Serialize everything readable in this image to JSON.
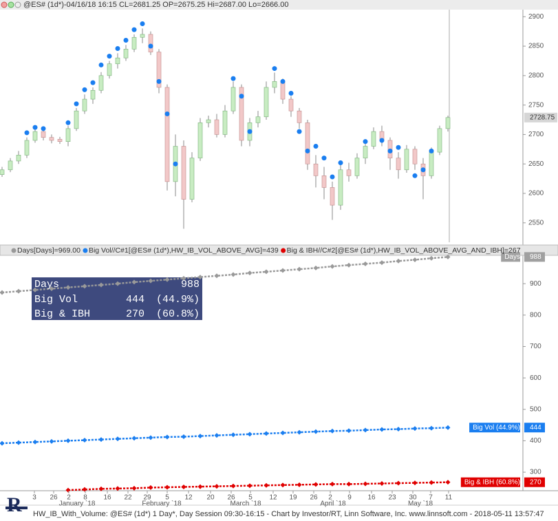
{
  "header": {
    "title": "@ES# (1d*)-04/16/18 16:15 CL=2681.25 OP=2675.25 Hi=2687.00 Lo=2666.00"
  },
  "chart_data": [
    {
      "type": "candlestick",
      "open": [
        2632,
        2640,
        2655,
        2665,
        2690,
        2705,
        2695,
        2692,
        2688,
        2710,
        2740,
        2760,
        2775,
        2800,
        2820,
        2830,
        2845,
        2865,
        2870,
        2840,
        2780,
        2620,
        2680,
        2590,
        2660,
        2720,
        2725,
        2700,
        2740,
        2780,
        2690,
        2720,
        2730,
        2780,
        2790,
        2760,
        2740,
        2720,
        2650,
        2630,
        2610,
        2580,
        2640,
        2630,
        2660,
        2680,
        2705,
        2690,
        2660,
        2640,
        2675,
        2650,
        2630,
        2670,
        2710
      ],
      "high": [
        2645,
        2660,
        2672,
        2695,
        2712,
        2710,
        2700,
        2696,
        2715,
        2745,
        2768,
        2780,
        2806,
        2825,
        2838,
        2852,
        2870,
        2880,
        2875,
        2845,
        2785,
        2700,
        2690,
        2670,
        2728,
        2732,
        2735,
        2750,
        2790,
        2785,
        2728,
        2740,
        2790,
        2805,
        2795,
        2765,
        2745,
        2725,
        2665,
        2645,
        2620,
        2648,
        2652,
        2668,
        2690,
        2712,
        2715,
        2695,
        2670,
        2682,
        2680,
        2660,
        2678,
        2715,
        2732
      ],
      "low": [
        2628,
        2636,
        2650,
        2660,
        2686,
        2690,
        2685,
        2684,
        2680,
        2706,
        2735,
        2752,
        2770,
        2795,
        2812,
        2825,
        2840,
        2855,
        2835,
        2770,
        2605,
        2595,
        2540,
        2585,
        2655,
        2712,
        2695,
        2695,
        2735,
        2680,
        2680,
        2712,
        2725,
        2770,
        2752,
        2730,
        2710,
        2640,
        2610,
        2590,
        2555,
        2572,
        2620,
        2625,
        2650,
        2675,
        2680,
        2640,
        2625,
        2635,
        2640,
        2590,
        2625,
        2665,
        2705
      ],
      "close": [
        2640,
        2655,
        2665,
        2690,
        2705,
        2695,
        2690,
        2688,
        2710,
        2740,
        2760,
        2775,
        2800,
        2820,
        2830,
        2845,
        2865,
        2870,
        2840,
        2780,
        2620,
        2680,
        2590,
        2660,
        2720,
        2725,
        2700,
        2740,
        2780,
        2690,
        2720,
        2730,
        2780,
        2790,
        2760,
        2740,
        2720,
        2650,
        2630,
        2610,
        2580,
        2640,
        2630,
        2660,
        2680,
        2705,
        2690,
        2660,
        2640,
        2675,
        2650,
        2630,
        2670,
        2710,
        2728.75
      ],
      "signals": [
        null,
        null,
        null,
        2703,
        2712,
        2710,
        null,
        null,
        2720,
        2752,
        2776,
        2788,
        2818,
        2833,
        2846,
        2860,
        2878,
        2888,
        2850,
        2790,
        2735,
        2650,
        null,
        null,
        null,
        null,
        null,
        null,
        2795,
        2765,
        2705,
        null,
        null,
        2812,
        2790,
        2770,
        2705,
        2672,
        2680,
        2660,
        2628,
        2652,
        null,
        null,
        2688,
        null,
        2690,
        2672,
        2678,
        null,
        2630,
        2640,
        2672,
        null,
        null
      ],
      "signal_color": "#1a7ef0",
      "up_color": "#c8ecc2",
      "down_color": "#f2c8c8",
      "ylim": [
        2517,
        2912
      ],
      "yticks": [
        2550,
        2600,
        2650,
        2700,
        2750,
        2800,
        2850,
        2900
      ]
    },
    {
      "type": "line",
      "series": [
        {
          "name": "Days[Days]=969.00",
          "tag": "Days",
          "last_label": 988,
          "color": "#999999",
          "values": [
            872,
            876,
            880,
            884,
            888,
            892,
            896,
            900,
            905,
            909,
            913,
            917,
            921,
            925,
            929,
            934,
            938,
            942,
            946,
            950,
            955,
            959,
            963,
            967,
            972,
            976,
            981,
            985
          ]
        },
        {
          "name": "Big Vol//C#1[@ES# (1d*),HW_IB_VOL_ABOVE_AVG]=439",
          "tag": "Big Vol (44.9%)",
          "last_label": 444,
          "color": "#1a7ef0",
          "values": [
            392,
            394,
            396,
            398,
            400,
            402,
            404,
            406,
            408,
            410,
            412,
            413,
            415,
            417,
            419,
            421,
            423,
            425,
            427,
            429,
            431,
            432,
            434,
            436,
            437,
            439,
            440,
            442
          ]
        },
        {
          "name": "Big & IBH//C#2[@ES# (1d*),HW_IB_VOL_ABOVE_AVG_AND_IBH]=267",
          "tag": "Big & IBH (60.8%)",
          "last_label": 270,
          "color": "#e00000",
          "values": [
            null,
            null,
            null,
            null,
            243,
            245,
            247,
            248,
            249,
            251,
            252,
            253,
            254,
            255,
            256,
            257,
            258,
            259,
            260,
            261,
            262,
            262,
            263,
            264,
            265,
            266,
            267,
            268
          ]
        }
      ],
      "ylim": [
        241,
        988
      ],
      "yticks": [
        300,
        400,
        500,
        600,
        700,
        800,
        900
      ]
    }
  ],
  "info_box": [
    {
      "label": "Days",
      "value": 988
    },
    {
      "label": "Big Vol",
      "value": 444,
      "pct": "(44.9%)"
    },
    {
      "label": "Big & IBH",
      "value": 270,
      "pct": "(60.8%)"
    }
  ],
  "date_axis": {
    "days": [
      "3",
      "26",
      "2",
      "8",
      "16",
      "22",
      "29",
      "5",
      "12",
      "20",
      "26",
      "5",
      "12",
      "19",
      "26",
      "2",
      "9",
      "16",
      "23",
      "30",
      "7",
      "11"
    ],
    "months": [
      "January `18",
      "February `18",
      "March `18",
      "April `18",
      "May `18"
    ]
  },
  "footer": "HW_IB_With_Volume: @ES# (1d*) 1 Day*, Day Session 09:30-16:15 - Chart by Investor/RT, Linn Software, Inc. www.linnsoft.com - 2018-05-11 13:57:47"
}
